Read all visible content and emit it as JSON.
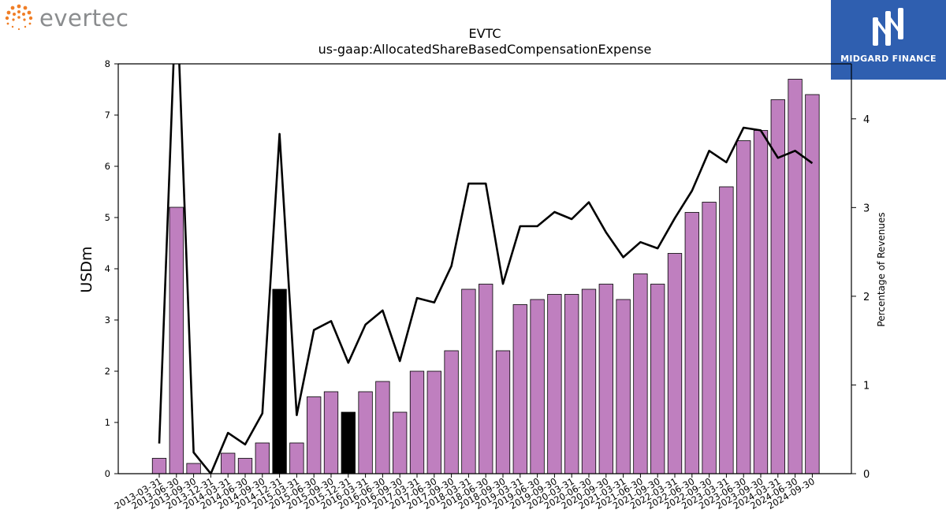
{
  "logos": {
    "left": {
      "text": "evertec",
      "color": "#f07e26"
    },
    "right": {
      "text": "MIDGARD FINANCE",
      "bg": "#2f5fb0"
    }
  },
  "chart_data": {
    "type": "bar",
    "title": "EVTC",
    "subtitle": "us-gaap:AllocatedShareBasedCompensationExpense",
    "ylabel": "USDm",
    "y2label": "Percentage of Revenues",
    "ylim": [
      0,
      8
    ],
    "y2lim": [
      0,
      4.62
    ],
    "yticks": [
      0,
      1,
      2,
      3,
      4,
      5,
      6,
      7,
      8
    ],
    "y2ticks": [
      0,
      1,
      2,
      3,
      4
    ],
    "grid": false,
    "bar_color": "#bf7fbf",
    "highlight_color": "#000000",
    "line_color": "#000000",
    "categories": [
      "2013-03-31",
      "2013-06-30",
      "2013-09-30",
      "2013-12-31",
      "2014-03-31",
      "2014-06-30",
      "2014-09-30",
      "2014-12-31",
      "2015-03-31",
      "2015-06-30",
      "2015-09-30",
      "2015-12-31",
      "2016-03-31",
      "2016-06-30",
      "2016-09-30",
      "2017-03-31",
      "2017-06-30",
      "2017-09-30",
      "2018-03-31",
      "2018-06-30",
      "2018-09-30",
      "2019-03-31",
      "2019-06-30",
      "2019-09-30",
      "2020-03-31",
      "2020-06-30",
      "2020-09-30",
      "2021-03-31",
      "2021-06-30",
      "2021-09-30",
      "2022-03-31",
      "2022-06-30",
      "2022-09-30",
      "2023-03-31",
      "2023-06-30",
      "2023-09-30",
      "2024-03-31",
      "2024-06-30",
      "2024-09-30"
    ],
    "series": [
      {
        "kind": "bar",
        "axis": "left",
        "values": [
          0.3,
          5.2,
          0.2,
          0,
          0.4,
          0.3,
          0.6,
          3.6,
          0.6,
          1.5,
          1.6,
          1.2,
          1.6,
          1.8,
          1.2,
          2.0,
          2.0,
          2.4,
          3.6,
          3.7,
          2.4,
          3.3,
          3.4,
          3.5,
          3.5,
          3.6,
          3.7,
          3.4,
          3.9,
          3.7,
          4.3,
          5.1,
          5.3,
          5.6,
          6.5,
          6.7,
          7.3,
          7.7,
          7.4
        ],
        "highlight": [
          7,
          11
        ]
      },
      {
        "kind": "line",
        "axis": "right",
        "values": [
          0.34,
          5.5,
          0.24,
          0.0,
          0.46,
          0.33,
          0.68,
          3.83,
          0.66,
          1.62,
          1.72,
          1.25,
          1.68,
          1.84,
          1.27,
          1.98,
          1.93,
          2.34,
          3.27,
          3.27,
          2.14,
          2.79,
          2.79,
          2.95,
          2.87,
          3.06,
          2.72,
          2.44,
          2.61,
          2.54,
          2.88,
          3.19,
          3.64,
          3.51,
          3.9,
          3.87,
          3.56,
          3.64,
          3.5
        ]
      }
    ]
  }
}
